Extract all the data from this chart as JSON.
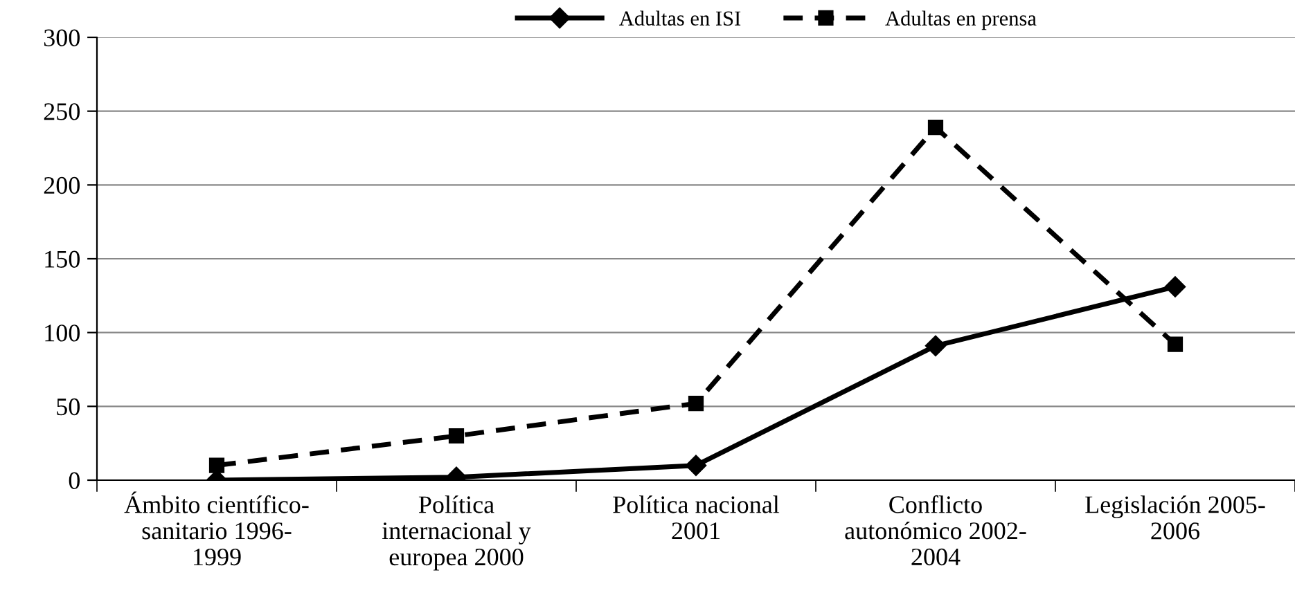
{
  "chart_data": {
    "type": "line",
    "categories": [
      "Ámbito científico-\nsanitario 1996-\n1999",
      "Política\ninternacional y\neuropea 2000",
      "Política nacional\n2001",
      "Conflicto\nautonómico 2002-\n2004",
      "Legislación 2005-\n2006"
    ],
    "series": [
      {
        "name": "Adultas en ISI",
        "color": "#000000",
        "marker": "diamond",
        "line_style": "solid",
        "values": [
          0,
          2,
          10,
          91,
          131
        ]
      },
      {
        "name": "Adultas en prensa",
        "color": "#000000",
        "marker": "square",
        "line_style": "dashed",
        "values": [
          10,
          30,
          52,
          239,
          92
        ]
      }
    ],
    "ylim": [
      0,
      300
    ],
    "yticks": [
      0,
      50,
      100,
      150,
      200,
      250,
      300
    ],
    "grid": "y",
    "legend": "top"
  }
}
